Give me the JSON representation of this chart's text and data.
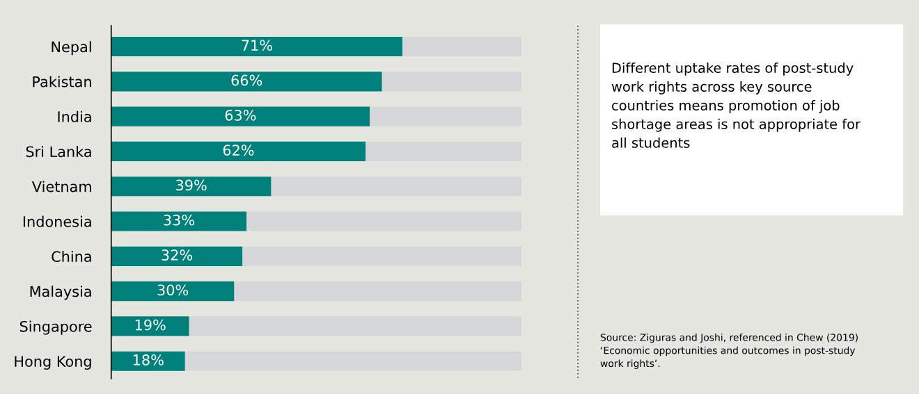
{
  "chart_data": {
    "type": "bar",
    "orientation": "horizontal",
    "stacked": true,
    "categories": [
      "Nepal",
      "Pakistan",
      "India",
      "Sri Lanka",
      "Vietnam",
      "Indonesia",
      "China",
      "Malaysia",
      "Singapore",
      "Hong Kong"
    ],
    "series": [
      {
        "color": "#00807a",
        "values": [
          71,
          66,
          63,
          62,
          39,
          33,
          32,
          30,
          19,
          18
        ],
        "value_labels": [
          "71%",
          "66%",
          "63%",
          "62%",
          "39%",
          "33%",
          "32%",
          "30%",
          "19%",
          "18%"
        ]
      },
      {
        "color": "#d6d7d9",
        "values": [
          29,
          34,
          37,
          38,
          61,
          67,
          68,
          70,
          81,
          82
        ]
      }
    ],
    "xlim": [
      0,
      100
    ],
    "tick_labels": "y",
    "grid": false,
    "legend": false,
    "annotations": [
      "Different uptake rates of post-study\nwork rights across key source\ncountries means promotion of job\nshortage areas is not appropriate for\nall students",
      "Source: Ziguras and Joshi, referenced in Chew (2019)\n‘Economic opportunities and outcomes in post-study\nwork rights’."
    ]
  }
}
